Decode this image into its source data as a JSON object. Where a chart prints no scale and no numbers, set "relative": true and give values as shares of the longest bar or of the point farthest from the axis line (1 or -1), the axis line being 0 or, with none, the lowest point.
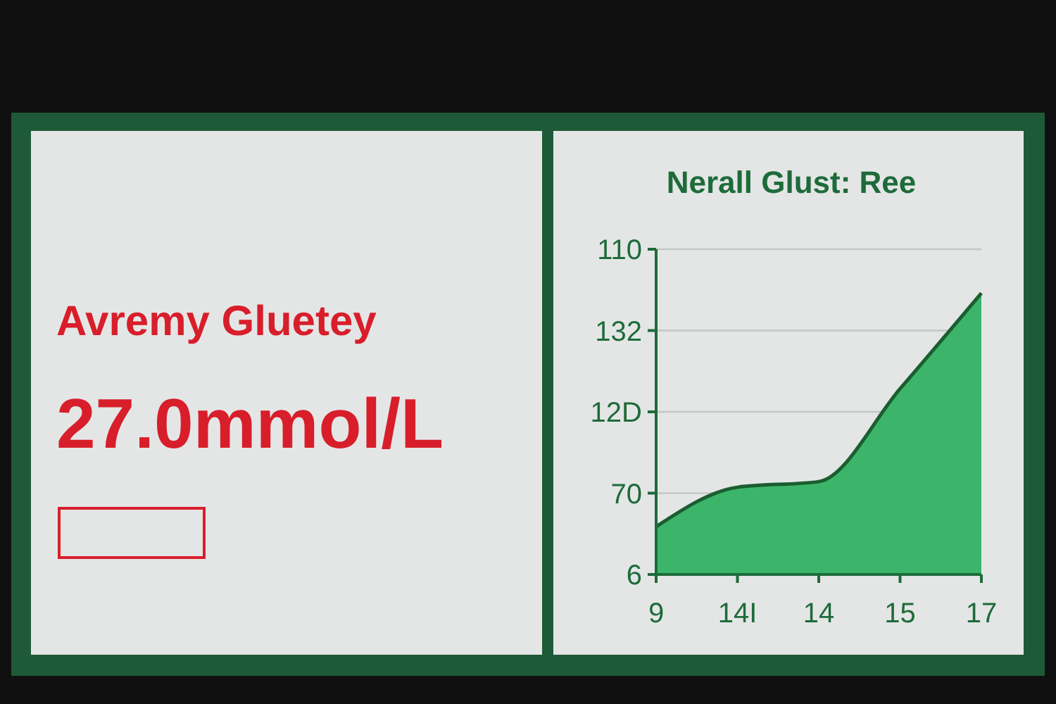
{
  "chart_data": [
    {
      "type": "other",
      "title": "Avremy Gluetey",
      "annotations": [
        "27.0mmol/L"
      ]
    },
    {
      "type": "area",
      "title": "Nerall Glust: Ree",
      "categories": [
        "9",
        "14I",
        "14",
        "15",
        "17"
      ],
      "series": [
        {
          "color": "#3cb56a",
          "values": [
            0.17,
            0.31,
            0.33,
            0.66,
            1
          ]
        }
      ],
      "relative": true,
      "annotations": [
        "6",
        "70",
        "12D",
        "132",
        "110"
      ],
      "grid": "y"
    }
  ]
}
